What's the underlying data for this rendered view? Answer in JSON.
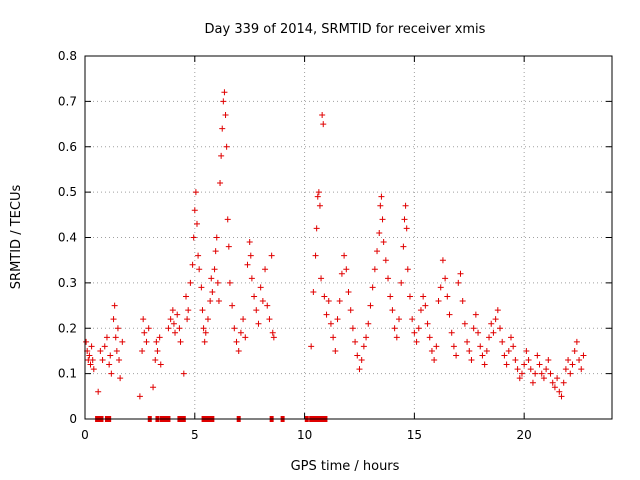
{
  "chart_data": {
    "type": "scatter",
    "title": "Day 339 of 2014, SRMTID for receiver xmis",
    "xlabel": "GPS time / hours",
    "ylabel": "SRMTID / TECUs",
    "xlim": [
      0,
      24
    ],
    "ylim": [
      0,
      0.8
    ],
    "x_ticks": [
      0,
      5,
      10,
      15,
      20
    ],
    "x_tick_labels": [
      "0",
      "5",
      "10",
      "15",
      "20"
    ],
    "y_ticks": [
      0,
      0.1,
      0.2,
      0.3,
      0.4,
      0.5,
      0.6,
      0.7,
      0.8
    ],
    "y_tick_labels": [
      "0",
      "0.1",
      "0.2",
      "0.3",
      "0.4",
      "0.5",
      "0.6",
      "0.7",
      "0.8"
    ],
    "grid": true,
    "marker": "+",
    "color": "#e00000",
    "series": [
      {
        "name": "SRMTID",
        "points": [
          [
            0.05,
            0.17
          ],
          [
            0.1,
            0.15
          ],
          [
            0.15,
            0.13
          ],
          [
            0.2,
            0.14
          ],
          [
            0.25,
            0.12
          ],
          [
            0.3,
            0.16
          ],
          [
            0.35,
            0.13
          ],
          [
            0.4,
            0.11
          ],
          [
            0.6,
            0.06
          ],
          [
            0.7,
            0.15
          ],
          [
            0.8,
            0.13
          ],
          [
            0.9,
            0.16
          ],
          [
            1.0,
            0.18
          ],
          [
            1.1,
            0.12
          ],
          [
            1.15,
            0.14
          ],
          [
            1.2,
            0.1
          ],
          [
            1.3,
            0.22
          ],
          [
            1.35,
            0.25
          ],
          [
            1.4,
            0.18
          ],
          [
            1.45,
            0.15
          ],
          [
            1.5,
            0.2
          ],
          [
            1.55,
            0.13
          ],
          [
            1.6,
            0.09
          ],
          [
            1.7,
            0.17
          ],
          [
            2.5,
            0.05
          ],
          [
            2.6,
            0.15
          ],
          [
            2.65,
            0.22
          ],
          [
            2.7,
            0.19
          ],
          [
            2.8,
            0.17
          ],
          [
            2.9,
            0.2
          ],
          [
            3.1,
            0.07
          ],
          [
            3.2,
            0.13
          ],
          [
            3.25,
            0.17
          ],
          [
            3.3,
            0.15
          ],
          [
            3.4,
            0.18
          ],
          [
            3.45,
            0.12
          ],
          [
            3.8,
            0.2
          ],
          [
            3.9,
            0.22
          ],
          [
            4.0,
            0.24
          ],
          [
            4.05,
            0.21
          ],
          [
            4.1,
            0.19
          ],
          [
            4.2,
            0.23
          ],
          [
            4.3,
            0.2
          ],
          [
            4.35,
            0.17
          ],
          [
            4.5,
            0.1
          ],
          [
            4.6,
            0.27
          ],
          [
            4.65,
            0.22
          ],
          [
            4.7,
            0.24
          ],
          [
            4.8,
            0.3
          ],
          [
            4.9,
            0.34
          ],
          [
            4.95,
            0.4
          ],
          [
            5.0,
            0.46
          ],
          [
            5.05,
            0.5
          ],
          [
            5.1,
            0.43
          ],
          [
            5.15,
            0.36
          ],
          [
            5.2,
            0.33
          ],
          [
            5.3,
            0.29
          ],
          [
            5.35,
            0.24
          ],
          [
            5.4,
            0.2
          ],
          [
            5.45,
            0.17
          ],
          [
            5.5,
            0.19
          ],
          [
            5.6,
            0.22
          ],
          [
            5.7,
            0.26
          ],
          [
            5.75,
            0.31
          ],
          [
            5.8,
            0.28
          ],
          [
            5.9,
            0.33
          ],
          [
            5.95,
            0.37
          ],
          [
            6.0,
            0.4
          ],
          [
            6.05,
            0.3
          ],
          [
            6.1,
            0.26
          ],
          [
            6.15,
            0.52
          ],
          [
            6.2,
            0.58
          ],
          [
            6.25,
            0.64
          ],
          [
            6.3,
            0.7
          ],
          [
            6.35,
            0.72
          ],
          [
            6.4,
            0.67
          ],
          [
            6.45,
            0.6
          ],
          [
            6.5,
            0.44
          ],
          [
            6.55,
            0.38
          ],
          [
            6.6,
            0.3
          ],
          [
            6.7,
            0.25
          ],
          [
            6.8,
            0.2
          ],
          [
            6.9,
            0.17
          ],
          [
            7.0,
            0.15
          ],
          [
            7.1,
            0.19
          ],
          [
            7.2,
            0.22
          ],
          [
            7.3,
            0.18
          ],
          [
            7.4,
            0.34
          ],
          [
            7.5,
            0.39
          ],
          [
            7.55,
            0.36
          ],
          [
            7.6,
            0.31
          ],
          [
            7.7,
            0.27
          ],
          [
            7.8,
            0.24
          ],
          [
            7.9,
            0.21
          ],
          [
            8.0,
            0.29
          ],
          [
            8.1,
            0.26
          ],
          [
            8.2,
            0.33
          ],
          [
            8.3,
            0.25
          ],
          [
            8.4,
            0.22
          ],
          [
            8.5,
            0.36
          ],
          [
            8.55,
            0.19
          ],
          [
            8.6,
            0.18
          ],
          [
            10.3,
            0.16
          ],
          [
            10.4,
            0.28
          ],
          [
            10.5,
            0.36
          ],
          [
            10.55,
            0.42
          ],
          [
            10.6,
            0.49
          ],
          [
            10.65,
            0.5
          ],
          [
            10.7,
            0.47
          ],
          [
            10.75,
            0.31
          ],
          [
            10.8,
            0.67
          ],
          [
            10.85,
            0.65
          ],
          [
            10.9,
            0.27
          ],
          [
            11.0,
            0.23
          ],
          [
            11.1,
            0.26
          ],
          [
            11.2,
            0.21
          ],
          [
            11.3,
            0.18
          ],
          [
            11.4,
            0.15
          ],
          [
            11.5,
            0.22
          ],
          [
            11.6,
            0.26
          ],
          [
            11.7,
            0.32
          ],
          [
            11.8,
            0.36
          ],
          [
            11.9,
            0.33
          ],
          [
            12.0,
            0.28
          ],
          [
            12.1,
            0.24
          ],
          [
            12.2,
            0.2
          ],
          [
            12.3,
            0.17
          ],
          [
            12.4,
            0.14
          ],
          [
            12.5,
            0.11
          ],
          [
            12.6,
            0.13
          ],
          [
            12.7,
            0.16
          ],
          [
            12.8,
            0.18
          ],
          [
            12.9,
            0.21
          ],
          [
            13.0,
            0.25
          ],
          [
            13.1,
            0.29
          ],
          [
            13.2,
            0.33
          ],
          [
            13.3,
            0.37
          ],
          [
            13.4,
            0.41
          ],
          [
            13.45,
            0.47
          ],
          [
            13.5,
            0.49
          ],
          [
            13.55,
            0.44
          ],
          [
            13.6,
            0.39
          ],
          [
            13.7,
            0.35
          ],
          [
            13.8,
            0.31
          ],
          [
            13.9,
            0.27
          ],
          [
            14.0,
            0.24
          ],
          [
            14.1,
            0.2
          ],
          [
            14.2,
            0.18
          ],
          [
            14.3,
            0.22
          ],
          [
            14.4,
            0.3
          ],
          [
            14.5,
            0.38
          ],
          [
            14.55,
            0.44
          ],
          [
            14.6,
            0.47
          ],
          [
            14.65,
            0.42
          ],
          [
            14.7,
            0.33
          ],
          [
            14.8,
            0.27
          ],
          [
            14.9,
            0.22
          ],
          [
            15.0,
            0.19
          ],
          [
            15.1,
            0.17
          ],
          [
            15.2,
            0.2
          ],
          [
            15.3,
            0.24
          ],
          [
            15.4,
            0.27
          ],
          [
            15.5,
            0.25
          ],
          [
            15.6,
            0.21
          ],
          [
            15.7,
            0.18
          ],
          [
            15.8,
            0.15
          ],
          [
            15.9,
            0.13
          ],
          [
            16.0,
            0.16
          ],
          [
            16.1,
            0.26
          ],
          [
            16.2,
            0.29
          ],
          [
            16.3,
            0.35
          ],
          [
            16.4,
            0.31
          ],
          [
            16.5,
            0.27
          ],
          [
            16.6,
            0.23
          ],
          [
            16.7,
            0.19
          ],
          [
            16.8,
            0.16
          ],
          [
            16.9,
            0.14
          ],
          [
            17.0,
            0.3
          ],
          [
            17.1,
            0.32
          ],
          [
            17.2,
            0.26
          ],
          [
            17.3,
            0.21
          ],
          [
            17.4,
            0.17
          ],
          [
            17.5,
            0.15
          ],
          [
            17.6,
            0.13
          ],
          [
            17.7,
            0.2
          ],
          [
            17.8,
            0.23
          ],
          [
            17.9,
            0.19
          ],
          [
            18.0,
            0.16
          ],
          [
            18.1,
            0.14
          ],
          [
            18.2,
            0.12
          ],
          [
            18.3,
            0.15
          ],
          [
            18.4,
            0.18
          ],
          [
            18.5,
            0.21
          ],
          [
            18.6,
            0.19
          ],
          [
            18.7,
            0.22
          ],
          [
            18.8,
            0.24
          ],
          [
            18.9,
            0.2
          ],
          [
            19.0,
            0.17
          ],
          [
            19.1,
            0.14
          ],
          [
            19.2,
            0.12
          ],
          [
            19.3,
            0.15
          ],
          [
            19.4,
            0.18
          ],
          [
            19.5,
            0.16
          ],
          [
            19.6,
            0.13
          ],
          [
            19.7,
            0.11
          ],
          [
            19.8,
            0.09
          ],
          [
            19.9,
            0.1
          ],
          [
            20.0,
            0.12
          ],
          [
            20.1,
            0.15
          ],
          [
            20.2,
            0.13
          ],
          [
            20.3,
            0.11
          ],
          [
            20.4,
            0.08
          ],
          [
            20.5,
            0.1
          ],
          [
            20.6,
            0.14
          ],
          [
            20.7,
            0.12
          ],
          [
            20.8,
            0.1
          ],
          [
            20.9,
            0.09
          ],
          [
            21.0,
            0.11
          ],
          [
            21.1,
            0.13
          ],
          [
            21.2,
            0.1
          ],
          [
            21.3,
            0.08
          ],
          [
            21.4,
            0.07
          ],
          [
            21.5,
            0.09
          ],
          [
            21.6,
            0.06
          ],
          [
            21.7,
            0.05
          ],
          [
            21.8,
            0.08
          ],
          [
            21.9,
            0.11
          ],
          [
            22.0,
            0.13
          ],
          [
            22.1,
            0.1
          ],
          [
            22.2,
            0.12
          ],
          [
            22.3,
            0.15
          ],
          [
            22.4,
            0.17
          ],
          [
            22.5,
            0.13
          ],
          [
            22.6,
            0.11
          ],
          [
            22.7,
            0.14
          ]
        ]
      }
    ],
    "gaps": [
      0.55,
      0.65,
      0.75,
      1.0,
      1.1,
      2.95,
      3.3,
      3.5,
      3.6,
      3.7,
      3.8,
      4.3,
      4.4,
      4.5,
      5.4,
      5.5,
      5.6,
      5.7,
      5.8,
      7.0,
      8.5,
      9.0,
      10.1,
      10.3,
      10.45,
      10.55,
      10.7,
      10.8,
      10.95
    ]
  }
}
